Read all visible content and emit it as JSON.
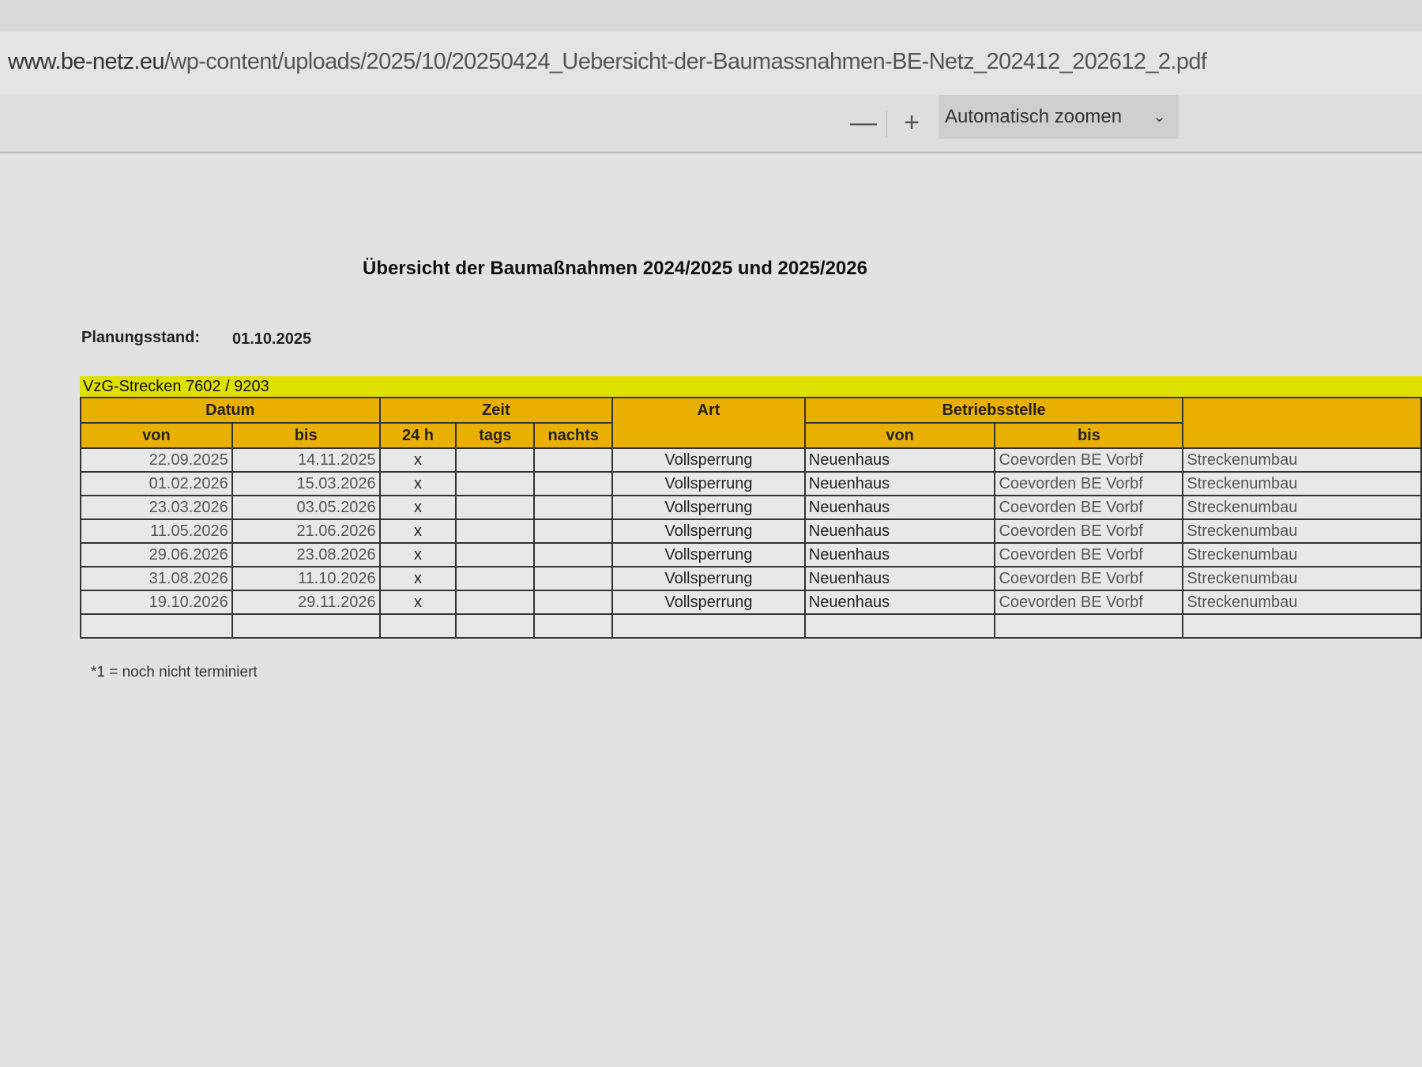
{
  "browser": {
    "url_domain": "www.be-netz.eu",
    "url_path": "/wp-content/uploads/2025/10/20250424_Uebersicht-der-Baumassnahmen-BE-Netz_202412_202612_2.pdf"
  },
  "pdf_toolbar": {
    "zoom_out_label": "—",
    "zoom_in_label": "+",
    "zoom_select_value": "Automatisch zoomen",
    "chevron": "⌄"
  },
  "document": {
    "title": "Übersicht der Baumaßnahmen 2024/2025 und 2025/2026",
    "planungsstand_label": "Planungsstand:",
    "planungsstand_date": "01.10.2025",
    "section_label": "VzG-Strecken 7602 / 9203",
    "table": {
      "group_headers": {
        "datum": "Datum",
        "zeit": "Zeit",
        "art": "Art",
        "betriebsstelle": "Betriebsstelle",
        "last": ""
      },
      "sub_headers": {
        "datum_von": "von",
        "datum_bis": "bis",
        "zeit_24h": "24 h",
        "zeit_tags": "tags",
        "zeit_nachts": "nachts",
        "bs_von": "von",
        "bs_bis": "bis"
      },
      "rows": [
        {
          "von": "22.09.2025",
          "bis": "14.11.2025",
          "h24": "x",
          "tags": "",
          "nachts": "",
          "art": "Vollsperrung",
          "bs_von": "Neuenhaus",
          "bs_bis": "Coevorden BE Vorbf",
          "bemerkung": "Streckenumbau"
        },
        {
          "von": "01.02.2026",
          "bis": "15.03.2026",
          "h24": "x",
          "tags": "",
          "nachts": "",
          "art": "Vollsperrung",
          "bs_von": "Neuenhaus",
          "bs_bis": "Coevorden BE Vorbf",
          "bemerkung": "Streckenumbau"
        },
        {
          "von": "23.03.2026",
          "bis": "03.05.2026",
          "h24": "x",
          "tags": "",
          "nachts": "",
          "art": "Vollsperrung",
          "bs_von": "Neuenhaus",
          "bs_bis": "Coevorden BE Vorbf",
          "bemerkung": "Streckenumbau"
        },
        {
          "von": "11.05.2026",
          "bis": "21.06.2026",
          "h24": "x",
          "tags": "",
          "nachts": "",
          "art": "Vollsperrung",
          "bs_von": "Neuenhaus",
          "bs_bis": "Coevorden BE Vorbf",
          "bemerkung": "Streckenumbau"
        },
        {
          "von": "29.06.2026",
          "bis": "23.08.2026",
          "h24": "x",
          "tags": "",
          "nachts": "",
          "art": "Vollsperrung",
          "bs_von": "Neuenhaus",
          "bs_bis": "Coevorden BE Vorbf",
          "bemerkung": "Streckenumbau"
        },
        {
          "von": "31.08.2026",
          "bis": "11.10.2026",
          "h24": "x",
          "tags": "",
          "nachts": "",
          "art": "Vollsperrung",
          "bs_von": "Neuenhaus",
          "bs_bis": "Coevorden BE Vorbf",
          "bemerkung": "Streckenumbau"
        },
        {
          "von": "19.10.2026",
          "bis": "29.11.2026",
          "h24": "x",
          "tags": "",
          "nachts": "",
          "art": "Vollsperrung",
          "bs_von": "Neuenhaus",
          "bs_bis": "Coevorden BE Vorbf",
          "bemerkung": "Streckenumbau"
        },
        {
          "von": "",
          "bis": "",
          "h24": "",
          "tags": "",
          "nachts": "",
          "art": "",
          "bs_von": "",
          "bs_bis": "",
          "bemerkung": ""
        }
      ]
    },
    "footnote": "*1 = noch nicht terminiert"
  },
  "colors": {
    "section_band": "#dfe000",
    "header_fill": "#eab000"
  }
}
